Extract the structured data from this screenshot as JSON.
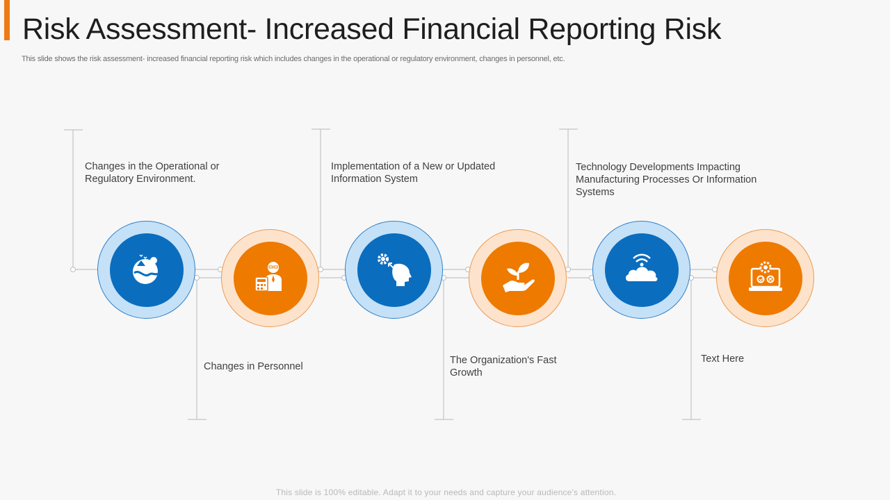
{
  "header": {
    "title": "Risk Assessment- Increased Financial Reporting Risk",
    "subtitle": "This slide shows the risk assessment- increased financial reporting risk which includes changes in the operational or regulatory environment, changes in personnel, etc."
  },
  "diagram": {
    "nodes": [
      {
        "label": "Changes in the Operational or Regulatory Environment.",
        "icon": "ecology-globe-icon",
        "color": "blue"
      },
      {
        "label": "Changes in Personnel",
        "icon": "accountant-calculator-icon",
        "color": "orange"
      },
      {
        "label": "Implementation of a New or Updated Information System",
        "icon": "head-gear-icon",
        "color": "blue"
      },
      {
        "label": "The Organization's Fast Growth",
        "icon": "hand-plant-icon",
        "color": "orange"
      },
      {
        "label": "Technology Developments Impacting Manufacturing Processes Or Information Systems",
        "icon": "cloud-wifi-icon",
        "color": "blue"
      },
      {
        "label": "Text Here",
        "icon": "laptop-gear-icon",
        "color": "orange"
      }
    ]
  },
  "colors": {
    "accent_orange": "#ee7a16",
    "node_blue": "#0b6dbe",
    "node_orange": "#ee7a00",
    "ring_blue": "#c5e1f7",
    "ring_orange": "#fde3cc"
  },
  "footer": {
    "note": "This slide is 100% editable. Adapt it to your needs and capture your audience's attention."
  }
}
